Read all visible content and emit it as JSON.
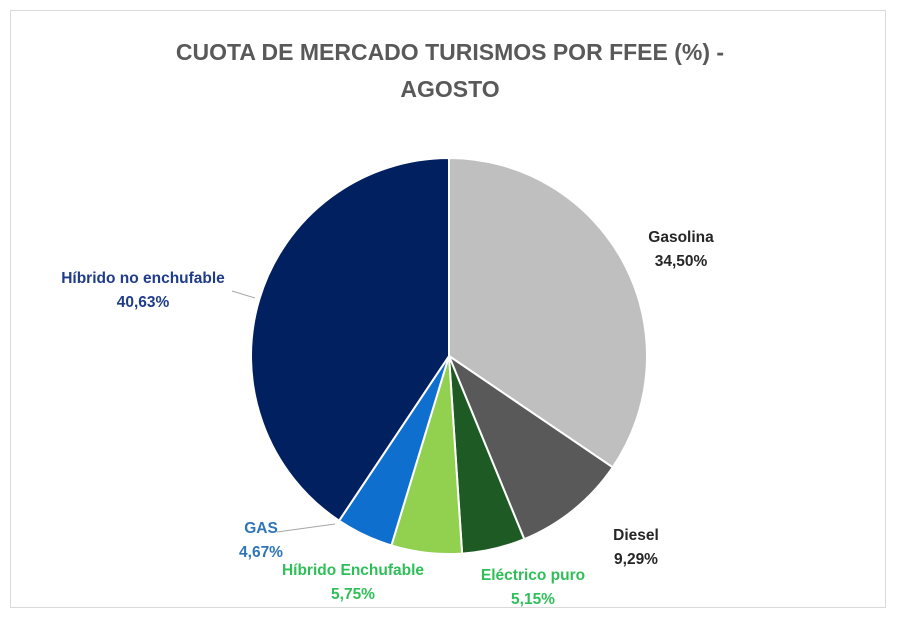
{
  "chart_data": {
    "type": "pie",
    "title_lines": [
      "CUOTA DE MERCADO TURISMOS POR FFEE (%)  -",
      "AGOSTO"
    ],
    "slices": [
      {
        "name": "Gasolina",
        "value": 34.5,
        "value_label": "34,50%",
        "color": "#bfbfbf",
        "label_color": "#262626"
      },
      {
        "name": "Diesel",
        "value": 9.29,
        "value_label": "9,29%",
        "color": "#595959",
        "label_color": "#262626"
      },
      {
        "name": "Eléctrico puro",
        "value": 5.15,
        "value_label": "5,15%",
        "color": "#1e5a23",
        "label_color": "#2fbf58"
      },
      {
        "name": "Híbrido Enchufable",
        "value": 5.75,
        "value_label": "5,75%",
        "color": "#92d050",
        "label_color": "#2fbf58"
      },
      {
        "name": "GAS",
        "value": 4.67,
        "value_label": "4,67%",
        "color": "#0f6fcf",
        "label_color": "#2e75b6"
      },
      {
        "name": "Híbrido no enchufable",
        "value": 40.63,
        "value_label": "40,63%",
        "color": "#002060",
        "label_color": "#1f3c88"
      }
    ]
  }
}
